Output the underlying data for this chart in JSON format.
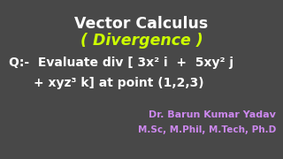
{
  "background_color": "#484848",
  "title_line1": "Vector Calculus",
  "title_line2": "( Divergence )",
  "title_line1_color": "#ffffff",
  "title_line2_color": "#ccff00",
  "question_line1": "Q:-  Evaluate div [ 3x² i  +  5xy² j",
  "question_line2": "+ xyz³ k] at point (1,2,3)",
  "question_color": "#ffffff",
  "author_line1": "Dr. Barun Kumar Yadav",
  "author_line2": "M.Sc, M.Phil, M.Tech, Ph.D",
  "author_color": "#cc88ee",
  "figsize": [
    3.2,
    1.8
  ],
  "dpi": 100
}
